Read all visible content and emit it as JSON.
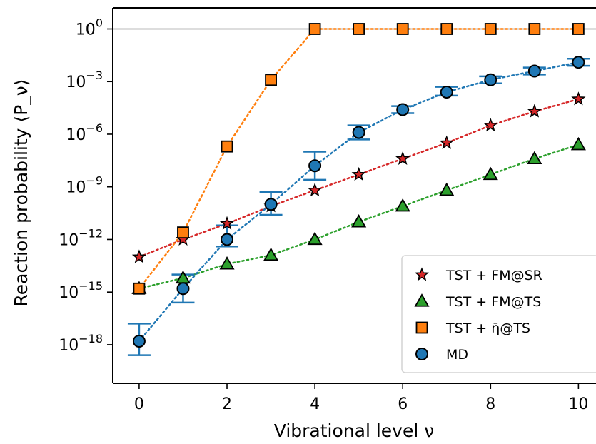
{
  "chart_data": {
    "type": "scatter",
    "xlabel": "Vibrational level ν",
    "ylabel": "Reaction probability ⟨P_ν⟩",
    "xlim": [
      -0.6,
      10.4
    ],
    "ylog": true,
    "ylim_log10": [
      -20.2,
      1.2
    ],
    "x_ticks": [
      0,
      2,
      4,
      6,
      8,
      10
    ],
    "y_tick_exponents": [
      0,
      -3,
      -6,
      -9,
      -12,
      -15,
      -18
    ],
    "reference_line": {
      "y": 1,
      "color": "#bbbbbb"
    },
    "legend_position": "bottom-right",
    "grid": false,
    "series": [
      {
        "name": "TST + FM@SR",
        "marker": "star",
        "color": "#d62728",
        "x": [
          0,
          1,
          2,
          3,
          4,
          5,
          6,
          7,
          8,
          9,
          10
        ],
        "log10_y": [
          -13.0,
          -12.0,
          -11.1,
          -10.1,
          -9.2,
          -8.3,
          -7.4,
          -6.5,
          -5.5,
          -4.7,
          -4.0
        ]
      },
      {
        "name": "TST + FM@TS",
        "marker": "triangle",
        "color": "#2ca02c",
        "x": [
          0,
          1,
          2,
          3,
          4,
          5,
          6,
          7,
          8,
          9,
          10
        ],
        "log10_y": [
          -14.8,
          -14.2,
          -13.4,
          -12.9,
          -12.0,
          -11.0,
          -10.1,
          -9.2,
          -8.3,
          -7.4,
          -6.6
        ]
      },
      {
        "name": "TST + η̄@TS",
        "marker": "square",
        "color": "#ff7f0e",
        "x": [
          0,
          1,
          2,
          3,
          4,
          5,
          6,
          7,
          8,
          9,
          10
        ],
        "log10_y": [
          -14.8,
          -11.6,
          -6.7,
          -2.9,
          0,
          0,
          0,
          0,
          0,
          0,
          0
        ]
      },
      {
        "name": "MD",
        "marker": "circle",
        "color": "#1f77b4",
        "x": [
          0,
          1,
          2,
          3,
          4,
          5,
          6,
          7,
          8,
          9,
          10
        ],
        "log10_y": [
          -17.8,
          -14.8,
          -12.0,
          -10.0,
          -7.8,
          -5.9,
          -4.6,
          -3.6,
          -2.9,
          -2.4,
          -1.9
        ],
        "err_log10_low": [
          -18.6,
          -15.6,
          -12.4,
          -10.6,
          -8.6,
          -6.3,
          -4.8,
          -3.8,
          -3.1,
          -2.6,
          -2.1
        ],
        "err_log10_high": [
          -16.8,
          -14.0,
          -11.2,
          -9.3,
          -7.0,
          -5.5,
          -4.4,
          -3.3,
          -2.7,
          -2.2,
          -1.7
        ]
      }
    ]
  }
}
